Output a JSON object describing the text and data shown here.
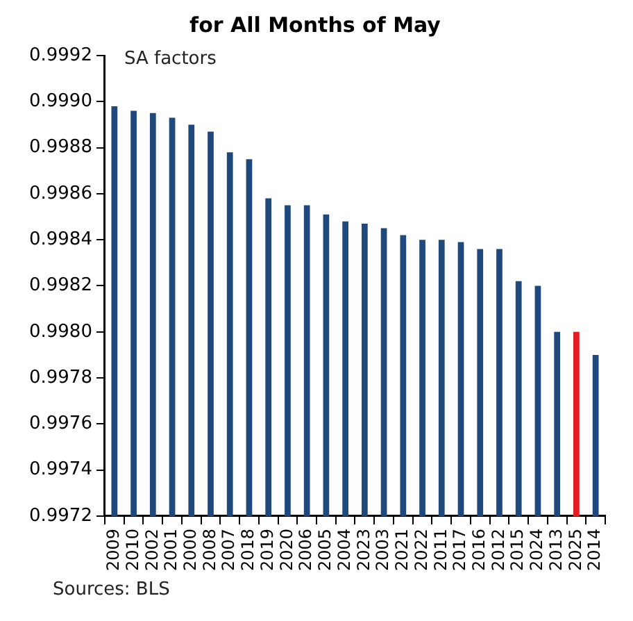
{
  "chart_data": {
    "type": "bar",
    "title": "for All Months of May",
    "categories": [
      "2009",
      "2010",
      "2002",
      "2001",
      "2000",
      "2008",
      "2007",
      "2018",
      "2019",
      "2020",
      "2006",
      "2005",
      "2004",
      "2023",
      "2003",
      "2021",
      "2022",
      "2011",
      "2017",
      "2016",
      "2012",
      "2015",
      "2024",
      "2013",
      "2025",
      "2014"
    ],
    "values": [
      0.99898,
      0.99896,
      0.99895,
      0.99893,
      0.9989,
      0.99887,
      0.99878,
      0.99875,
      0.99858,
      0.99855,
      0.99855,
      0.99851,
      0.99848,
      0.99847,
      0.99845,
      0.99842,
      0.9984,
      0.9984,
      0.99839,
      0.99836,
      0.99836,
      0.99822,
      0.9982,
      0.998,
      0.998,
      0.9979
    ],
    "colors": [
      "#1f497d",
      "#1f497d",
      "#1f497d",
      "#1f497d",
      "#1f497d",
      "#1f497d",
      "#1f497d",
      "#1f497d",
      "#1f497d",
      "#1f497d",
      "#1f497d",
      "#1f497d",
      "#1f497d",
      "#1f497d",
      "#1f497d",
      "#1f497d",
      "#1f497d",
      "#1f497d",
      "#1f497d",
      "#1f497d",
      "#1f497d",
      "#1f497d",
      "#1f497d",
      "#1f497d",
      "#e31b23",
      "#1f497d"
    ],
    "ylim": [
      0.9972,
      0.9992
    ],
    "yticks": [
      0.9972,
      0.9974,
      0.9976,
      0.9978,
      {
        "value": 0.998,
        "label": "0.9980"
      },
      0.9982,
      0.9984,
      0.9986,
      0.9988,
      {
        "value": 0.999,
        "label": "0.9990"
      },
      0.9992
    ],
    "grid": false,
    "legend": false,
    "annotations": [
      "SA factors",
      "Sources: BLS"
    ]
  }
}
